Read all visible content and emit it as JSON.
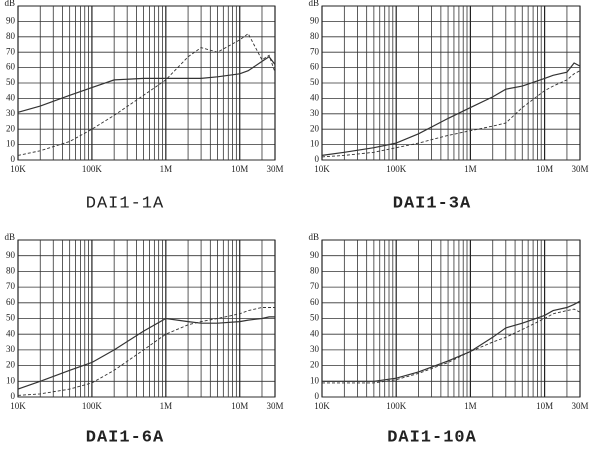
{
  "chart_data": [
    {
      "type": "line",
      "title": "DAI1-1A",
      "ylabel": "dB",
      "log_x": true,
      "grid": true,
      "x": [
        10000,
        20000,
        50000,
        100000,
        200000,
        500000,
        1000000,
        2000000,
        3000000,
        5000000,
        10000000,
        13000000,
        20000000,
        25000000,
        30000000
      ],
      "xlim": [
        10000,
        30000000
      ],
      "xticks": [
        {
          "value": 10000,
          "label": "10K"
        },
        {
          "value": 100000,
          "label": "100K"
        },
        {
          "value": 1000000,
          "label": "1M"
        },
        {
          "value": 10000000,
          "label": "10M"
        },
        {
          "value": 30000000,
          "label": "30M"
        }
      ],
      "xminorticks": [
        20000,
        30000,
        40000,
        50000,
        60000,
        70000,
        80000,
        90000,
        200000,
        300000,
        400000,
        500000,
        600000,
        700000,
        800000,
        900000,
        2000000,
        3000000,
        4000000,
        5000000,
        6000000,
        7000000,
        8000000,
        9000000,
        20000000
      ],
      "ylim": [
        0,
        100
      ],
      "yticks": [
        0,
        10,
        20,
        30,
        40,
        50,
        60,
        70,
        80,
        90
      ],
      "series": [
        {
          "color": "#333333",
          "style": "solid",
          "values": [
            31,
            35,
            42,
            47,
            52,
            53,
            53,
            53,
            53,
            54,
            56,
            58,
            64,
            67,
            62
          ]
        },
        {
          "color": "#333333",
          "style": "dashed",
          "values": [
            3,
            6,
            12,
            20,
            29,
            42,
            52,
            67,
            73,
            70,
            78,
            82,
            65,
            68,
            57
          ]
        }
      ]
    },
    {
      "type": "line",
      "title": "DAI1-3A",
      "ylabel": "dB",
      "log_x": true,
      "grid": true,
      "x": [
        10000,
        20000,
        50000,
        100000,
        200000,
        500000,
        1000000,
        2000000,
        3000000,
        5000000,
        10000000,
        13000000,
        20000000,
        25000000,
        30000000
      ],
      "xlim": [
        10000,
        30000000
      ],
      "xticks": [
        {
          "value": 10000,
          "label": "10K"
        },
        {
          "value": 100000,
          "label": "100K"
        },
        {
          "value": 1000000,
          "label": "1M"
        },
        {
          "value": 10000000,
          "label": "10M"
        },
        {
          "value": 30000000,
          "label": "30M"
        }
      ],
      "xminorticks": [
        20000,
        30000,
        40000,
        50000,
        60000,
        70000,
        80000,
        90000,
        200000,
        300000,
        400000,
        500000,
        600000,
        700000,
        800000,
        900000,
        2000000,
        3000000,
        4000000,
        5000000,
        6000000,
        7000000,
        8000000,
        9000000,
        20000000
      ],
      "ylim": [
        0,
        100
      ],
      "yticks": [
        0,
        10,
        20,
        30,
        40,
        50,
        60,
        70,
        80,
        90
      ],
      "series": [
        {
          "color": "#333333",
          "style": "solid",
          "values": [
            3,
            5,
            8,
            11,
            17,
            27,
            34,
            41,
            46,
            48,
            53,
            55,
            57,
            63,
            61
          ]
        },
        {
          "color": "#333333",
          "style": "dashed",
          "values": [
            2,
            3,
            5,
            8,
            11,
            16,
            19,
            22,
            24,
            34,
            45,
            48,
            52,
            56,
            58
          ]
        }
      ]
    },
    {
      "type": "line",
      "title": "DAI1-6A",
      "ylabel": "dB",
      "log_x": true,
      "grid": true,
      "x": [
        10000,
        20000,
        50000,
        100000,
        200000,
        500000,
        1000000,
        2000000,
        3000000,
        5000000,
        10000000,
        13000000,
        20000000,
        25000000,
        30000000
      ],
      "xlim": [
        10000,
        30000000
      ],
      "xticks": [
        {
          "value": 10000,
          "label": "10K"
        },
        {
          "value": 100000,
          "label": "100K"
        },
        {
          "value": 1000000,
          "label": "1M"
        },
        {
          "value": 10000000,
          "label": "10M"
        },
        {
          "value": 30000000,
          "label": "30M"
        }
      ],
      "xminorticks": [
        20000,
        30000,
        40000,
        50000,
        60000,
        70000,
        80000,
        90000,
        200000,
        300000,
        400000,
        500000,
        600000,
        700000,
        800000,
        900000,
        2000000,
        3000000,
        4000000,
        5000000,
        6000000,
        7000000,
        8000000,
        9000000,
        20000000
      ],
      "ylim": [
        0,
        100
      ],
      "yticks": [
        0,
        10,
        20,
        30,
        40,
        50,
        60,
        70,
        80,
        90
      ],
      "series": [
        {
          "color": "#333333",
          "style": "solid",
          "values": [
            5,
            10,
            17,
            22,
            30,
            42,
            50,
            48,
            47,
            47,
            48,
            49,
            50,
            51,
            51
          ]
        },
        {
          "color": "#333333",
          "style": "dashed",
          "values": [
            1,
            2,
            5,
            9,
            17,
            30,
            40,
            46,
            48,
            50,
            53,
            55,
            57,
            57,
            57
          ]
        }
      ]
    },
    {
      "type": "line",
      "title": "DAI1-10A",
      "ylabel": "dB",
      "log_x": true,
      "grid": true,
      "x": [
        10000,
        20000,
        50000,
        100000,
        200000,
        500000,
        1000000,
        2000000,
        3000000,
        5000000,
        10000000,
        13000000,
        20000000,
        25000000,
        30000000
      ],
      "xlim": [
        10000,
        30000000
      ],
      "xticks": [
        {
          "value": 10000,
          "label": "10K"
        },
        {
          "value": 100000,
          "label": "100K"
        },
        {
          "value": 1000000,
          "label": "1M"
        },
        {
          "value": 10000000,
          "label": "10M"
        },
        {
          "value": 30000000,
          "label": "30M"
        }
      ],
      "xminorticks": [
        20000,
        30000,
        40000,
        50000,
        60000,
        70000,
        80000,
        90000,
        200000,
        300000,
        400000,
        500000,
        600000,
        700000,
        800000,
        900000,
        2000000,
        3000000,
        4000000,
        5000000,
        6000000,
        7000000,
        8000000,
        9000000,
        20000000
      ],
      "ylim": [
        0,
        100
      ],
      "yticks": [
        0,
        10,
        20,
        30,
        40,
        50,
        60,
        70,
        80,
        90
      ],
      "series": [
        {
          "color": "#333333",
          "style": "solid",
          "values": [
            10,
            10,
            10,
            12,
            16,
            23,
            29,
            38,
            44,
            47,
            52,
            55,
            57,
            59,
            61
          ]
        },
        {
          "color": "#333333",
          "style": "dashed",
          "values": [
            9,
            9,
            9,
            11,
            15,
            22,
            29,
            35,
            38,
            43,
            50,
            53,
            55,
            56,
            54
          ]
        }
      ]
    }
  ]
}
